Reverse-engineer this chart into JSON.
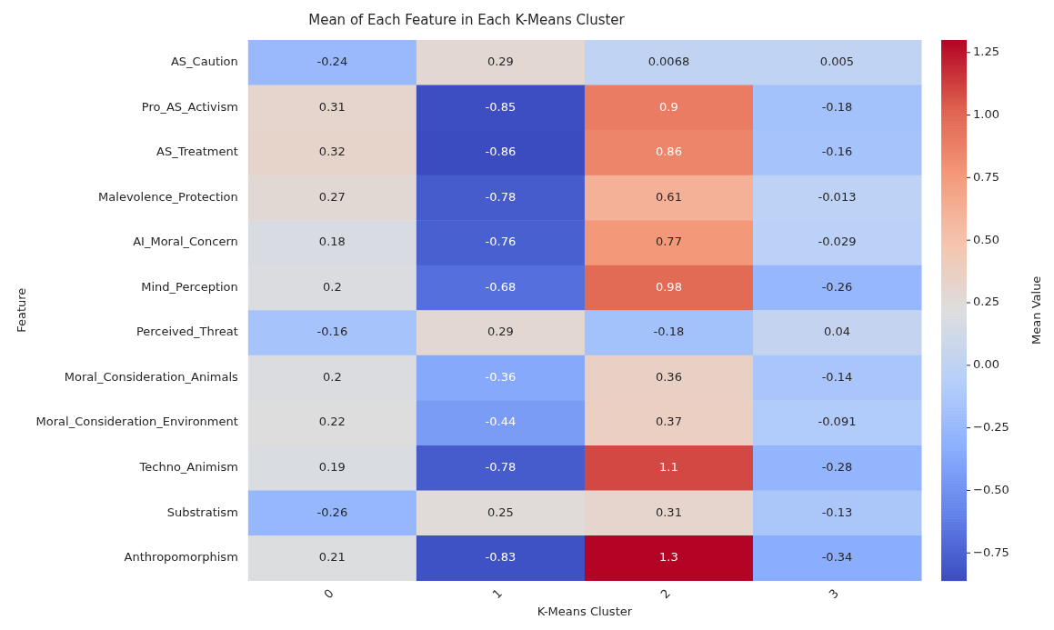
{
  "chart_data": {
    "type": "heatmap",
    "title": "Mean of Each Feature in Each K-Means Cluster",
    "xlabel": "K-Means Cluster",
    "ylabel": "Feature",
    "clabel": "Mean Value",
    "categories": [
      "0",
      "1",
      "2",
      "3"
    ],
    "y_categories": [
      "AS_Caution",
      "Pro_AS_Activism",
      "AS_Treatment",
      "Malevolence_Protection",
      "AI_Moral_Concern",
      "Mind_Perception",
      "Perceived_Threat",
      "Moral_Consideration_Animals",
      "Moral_Consideration_Environment",
      "Techno_Animism",
      "Substratism",
      "Anthropomorphism"
    ],
    "cells": [
      [
        -0.24,
        0.29,
        0.0068,
        0.005
      ],
      [
        0.31,
        -0.85,
        0.9,
        -0.18
      ],
      [
        0.32,
        -0.86,
        0.86,
        -0.16
      ],
      [
        0.27,
        -0.78,
        0.61,
        -0.013
      ],
      [
        0.18,
        -0.76,
        0.77,
        -0.029
      ],
      [
        0.2,
        -0.68,
        0.98,
        -0.26
      ],
      [
        -0.16,
        0.29,
        -0.18,
        0.04
      ],
      [
        0.2,
        -0.36,
        0.36,
        -0.14
      ],
      [
        0.22,
        -0.44,
        0.37,
        -0.091
      ],
      [
        0.19,
        -0.78,
        1.1,
        -0.28
      ],
      [
        -0.26,
        0.25,
        0.31,
        -0.13
      ],
      [
        0.21,
        -0.83,
        1.3,
        -0.34
      ]
    ],
    "clim": [
      -0.86,
      1.3
    ],
    "cticks": [
      {
        "value": -0.75,
        "label": "−0.75"
      },
      {
        "value": -0.5,
        "label": "−0.50"
      },
      {
        "value": -0.25,
        "label": "−0.25"
      },
      {
        "value": 0,
        "label": "0.00"
      },
      {
        "value": 0.25,
        "label": "0.25"
      },
      {
        "value": 0.5,
        "label": "0.50"
      },
      {
        "value": 0.75,
        "label": "0.75"
      },
      {
        "value": 1,
        "label": "1.00"
      },
      {
        "value": 1.25,
        "label": "1.25"
      }
    ],
    "data_labels": true
  }
}
